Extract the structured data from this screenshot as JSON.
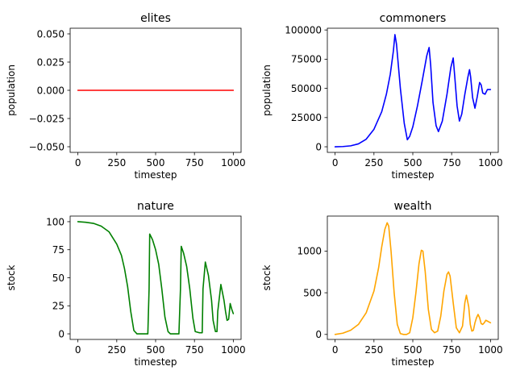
{
  "chart_data": [
    {
      "type": "line",
      "title": "elites",
      "xlabel": "timestep",
      "ylabel": "population",
      "xlim": [
        -50,
        1050
      ],
      "ylim": [
        -0.055,
        0.055
      ],
      "xticks": [
        0,
        250,
        500,
        750,
        1000
      ],
      "yticks": [
        -0.05,
        -0.025,
        0.0,
        0.025,
        0.05
      ],
      "ytick_labels": [
        "−0.050",
        "−0.025",
        "0.000",
        "0.025",
        "0.050"
      ],
      "grid": false,
      "color": "#ff0000",
      "x": [
        0,
        1000
      ],
      "y": [
        0,
        0
      ]
    },
    {
      "type": "line",
      "title": "commoners",
      "xlabel": "timestep",
      "ylabel": "population",
      "xlim": [
        -50,
        1050
      ],
      "ylim": [
        -4800,
        101500
      ],
      "xticks": [
        0,
        250,
        500,
        750,
        1000
      ],
      "yticks": [
        0,
        25000,
        50000,
        75000,
        100000
      ],
      "grid": false,
      "color": "#0000ff",
      "x": [
        0,
        50,
        100,
        150,
        200,
        250,
        300,
        330,
        355,
        375,
        385,
        395,
        420,
        445,
        465,
        480,
        500,
        530,
        560,
        590,
        605,
        615,
        630,
        650,
        665,
        690,
        720,
        745,
        760,
        770,
        785,
        800,
        815,
        835,
        855,
        865,
        872,
        885,
        900,
        915,
        930,
        940,
        950,
        965,
        980,
        1000
      ],
      "y": [
        0,
        200,
        800,
        2500,
        6500,
        15000,
        30000,
        45000,
        62000,
        82000,
        96000,
        88000,
        50000,
        20000,
        6000,
        9000,
        17000,
        35000,
        56000,
        78000,
        85000,
        70000,
        38000,
        18000,
        13000,
        22000,
        45000,
        68000,
        76000,
        60000,
        35000,
        22000,
        28000,
        45000,
        60000,
        66000,
        60000,
        42000,
        33000,
        43000,
        55000,
        53000,
        46000,
        45000,
        49000,
        49000
      ]
    },
    {
      "type": "line",
      "title": "nature",
      "xlabel": "timestep",
      "ylabel": "stock",
      "xlim": [
        -50,
        1050
      ],
      "ylim": [
        -5,
        105
      ],
      "xticks": [
        0,
        250,
        500,
        750,
        1000
      ],
      "yticks": [
        0,
        25,
        50,
        75,
        100
      ],
      "grid": false,
      "color": "#008000",
      "x": [
        0,
        50,
        100,
        150,
        200,
        250,
        280,
        300,
        320,
        340,
        360,
        380,
        410,
        450,
        458,
        462,
        480,
        500,
        520,
        540,
        560,
        580,
        595,
        620,
        650,
        660,
        665,
        680,
        700,
        720,
        740,
        755,
        780,
        800,
        805,
        820,
        840,
        860,
        870,
        885,
        895,
        900,
        920,
        940,
        950,
        960,
        970,
        980,
        990,
        1000
      ],
      "y": [
        100,
        99.5,
        98.5,
        96,
        91,
        80,
        70,
        58,
        42,
        20,
        3,
        0,
        0,
        0,
        40,
        89,
        84,
        75,
        62,
        40,
        15,
        2,
        0,
        0,
        0,
        40,
        78,
        72,
        60,
        40,
        14,
        2,
        1,
        1,
        40,
        64,
        52,
        30,
        12,
        2,
        2,
        20,
        44,
        30,
        20,
        12,
        13,
        27,
        22,
        18
      ]
    },
    {
      "type": "line",
      "title": "wealth",
      "xlabel": "timestep",
      "ylabel": "stock",
      "xlim": [
        -50,
        1050
      ],
      "ylim": [
        -60,
        1420
      ],
      "xticks": [
        0,
        250,
        500,
        750,
        1000
      ],
      "yticks": [
        0,
        500,
        1000
      ],
      "grid": false,
      "color": "#ffa500",
      "x": [
        0,
        50,
        100,
        150,
        200,
        250,
        280,
        300,
        320,
        335,
        345,
        360,
        380,
        400,
        420,
        440,
        460,
        480,
        500,
        520,
        540,
        555,
        565,
        580,
        600,
        620,
        640,
        660,
        680,
        700,
        720,
        730,
        740,
        760,
        780,
        800,
        820,
        835,
        845,
        860,
        870,
        880,
        890,
        900,
        910,
        920,
        930,
        940,
        950,
        960,
        970,
        980,
        990,
        1000
      ],
      "y": [
        0,
        15,
        50,
        120,
        260,
        520,
        800,
        1050,
        1260,
        1340,
        1300,
        1000,
        500,
        120,
        10,
        0,
        0,
        20,
        200,
        500,
        850,
        1010,
        1000,
        750,
        300,
        60,
        20,
        40,
        220,
        520,
        720,
        750,
        700,
        380,
        80,
        20,
        100,
        380,
        470,
        330,
        120,
        40,
        50,
        140,
        200,
        240,
        200,
        130,
        120,
        140,
        170,
        160,
        150,
        140
      ]
    }
  ]
}
